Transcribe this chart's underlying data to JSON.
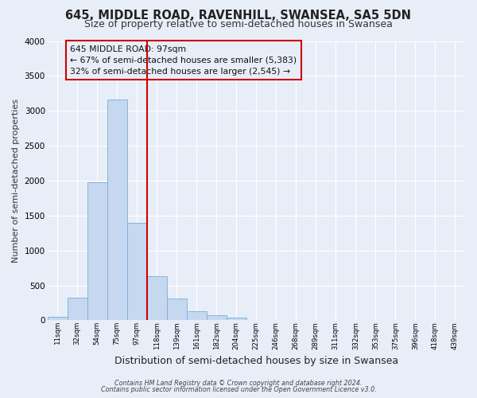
{
  "title": "645, MIDDLE ROAD, RAVENHILL, SWANSEA, SA5 5DN",
  "subtitle": "Size of property relative to semi-detached houses in Swansea",
  "xlabel": "Distribution of semi-detached houses by size in Swansea",
  "ylabel": "Number of semi-detached properties",
  "bin_labels": [
    "11sqm",
    "32sqm",
    "54sqm",
    "75sqm",
    "97sqm",
    "118sqm",
    "139sqm",
    "161sqm",
    "182sqm",
    "204sqm",
    "225sqm",
    "246sqm",
    "268sqm",
    "289sqm",
    "311sqm",
    "332sqm",
    "353sqm",
    "375sqm",
    "396sqm",
    "418sqm",
    "439sqm"
  ],
  "bar_values": [
    50,
    320,
    1980,
    3160,
    1400,
    630,
    310,
    130,
    75,
    40,
    10,
    5,
    3,
    1,
    0,
    0,
    0,
    0,
    0,
    0,
    0
  ],
  "bar_color": "#c5d8f0",
  "bar_edge_color": "#7aadd4",
  "vline_color": "#cc0000",
  "ylim": [
    0,
    4000
  ],
  "yticks": [
    0,
    500,
    1000,
    1500,
    2000,
    2500,
    3000,
    3500,
    4000
  ],
  "annotation_title": "645 MIDDLE ROAD: 97sqm",
  "annotation_line1": "← 67% of semi-detached houses are smaller (5,383)",
  "annotation_line2": "32% of semi-detached houses are larger (2,545) →",
  "footer1": "Contains HM Land Registry data © Crown copyright and database right 2024.",
  "footer2": "Contains public sector information licensed under the Open Government Licence v3.0.",
  "background_color": "#e8eef8",
  "grid_color": "#ffffff",
  "title_fontsize": 10.5,
  "subtitle_fontsize": 9,
  "xlabel_fontsize": 9,
  "ylabel_fontsize": 8
}
